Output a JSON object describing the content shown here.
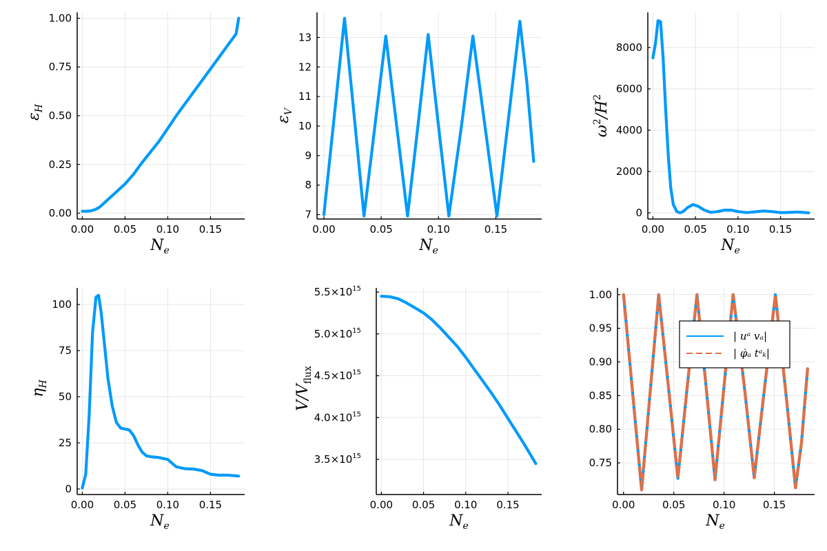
{
  "colors": {
    "series1": "#009AFA",
    "series2": "#E26F46",
    "grid": "#E6E6E6",
    "axis": "#000000"
  },
  "chart_data": [
    {
      "id": "epsH",
      "type": "line",
      "xlabel": "N_e",
      "ylabel": "ε_H",
      "xlim": [
        -0.006,
        0.19
      ],
      "ylim": [
        -0.03,
        1.03
      ],
      "xticks": [
        "0.00",
        "0.05",
        "0.10",
        "0.15"
      ],
      "xtick_values": [
        0,
        0.05,
        0.1,
        0.15
      ],
      "yticks": [
        "0.00",
        "0.25",
        "0.50",
        "0.75",
        "1.00"
      ],
      "ytick_values": [
        0,
        0.25,
        0.5,
        0.75,
        1.0
      ],
      "grid": true,
      "series": [
        {
          "color": "#009AFA",
          "style": "solid",
          "x": [
            0,
            0.005,
            0.01,
            0.015,
            0.02,
            0.025,
            0.03,
            0.04,
            0.05,
            0.06,
            0.07,
            0.08,
            0.09,
            0.1,
            0.11,
            0.12,
            0.13,
            0.14,
            0.15,
            0.16,
            0.17,
            0.18,
            0.183
          ],
          "y": [
            0.01,
            0.01,
            0.012,
            0.018,
            0.03,
            0.05,
            0.07,
            0.11,
            0.15,
            0.2,
            0.26,
            0.315,
            0.37,
            0.435,
            0.5,
            0.56,
            0.62,
            0.68,
            0.74,
            0.8,
            0.86,
            0.92,
            1.0
          ]
        }
      ]
    },
    {
      "id": "epsV",
      "type": "line",
      "xlabel": "N_e",
      "ylabel": "ε_V",
      "xlim": [
        -0.006,
        0.19
      ],
      "ylim": [
        6.85,
        13.85
      ],
      "xticks": [
        "0.00",
        "0.05",
        "0.10",
        "0.15"
      ],
      "xtick_values": [
        0,
        0.05,
        0.1,
        0.15
      ],
      "yticks": [
        "7",
        "8",
        "9",
        "10",
        "11",
        "12",
        "13"
      ],
      "ytick_values": [
        7,
        8,
        9,
        10,
        11,
        12,
        13
      ],
      "grid": true,
      "series": [
        {
          "color": "#009AFA",
          "style": "solid",
          "x": [
            0,
            0.009,
            0.018,
            0.0265,
            0.035,
            0.0445,
            0.054,
            0.0635,
            0.073,
            0.082,
            0.091,
            0.1,
            0.109,
            0.12,
            0.13,
            0.1405,
            0.151,
            0.161,
            0.171,
            0.177,
            0.183
          ],
          "y": [
            7.0,
            10.3,
            13.65,
            10.3,
            6.95,
            10.0,
            13.05,
            10.0,
            6.95,
            10.0,
            13.1,
            10.0,
            6.95,
            10.0,
            13.05,
            10.0,
            6.95,
            10.25,
            13.55,
            11.5,
            8.8
          ]
        }
      ]
    },
    {
      "id": "omega",
      "type": "line",
      "xlabel": "N_e",
      "ylabel": "ω²/H²",
      "xlim": [
        -0.006,
        0.19
      ],
      "ylim": [
        -300,
        9700
      ],
      "xticks": [
        "0.00",
        "0.05",
        "0.10",
        "0.15"
      ],
      "xtick_values": [
        0,
        0.05,
        0.1,
        0.15
      ],
      "yticks": [
        "0",
        "2000",
        "4000",
        "6000",
        "8000"
      ],
      "ytick_values": [
        0,
        2000,
        4000,
        6000,
        8000
      ],
      "grid": true,
      "series": [
        {
          "color": "#009AFA",
          "style": "solid",
          "x": [
            0,
            0.003,
            0.006,
            0.009,
            0.012,
            0.015,
            0.018,
            0.021,
            0.024,
            0.028,
            0.032,
            0.036,
            0.041,
            0.047,
            0.053,
            0.06,
            0.068,
            0.076,
            0.084,
            0.092,
            0.1,
            0.11,
            0.12,
            0.13,
            0.14,
            0.15,
            0.16,
            0.17,
            0.183
          ],
          "y": [
            7500,
            8200,
            9300,
            9250,
            7500,
            5000,
            2800,
            1200,
            400,
            60,
            0,
            80,
            260,
            400,
            320,
            140,
            20,
            60,
            130,
            130,
            60,
            10,
            50,
            90,
            60,
            10,
            20,
            40,
            0
          ]
        }
      ]
    },
    {
      "id": "etaH",
      "type": "line",
      "xlabel": "N_e",
      "ylabel": "η_H",
      "xlim": [
        -0.006,
        0.19
      ],
      "ylim": [
        -3,
        109
      ],
      "xticks": [
        "0.00",
        "0.05",
        "0.10",
        "0.15"
      ],
      "xtick_values": [
        0,
        0.05,
        0.1,
        0.15
      ],
      "yticks": [
        "0",
        "25",
        "50",
        "75",
        "100"
      ],
      "ytick_values": [
        0,
        25,
        50,
        75,
        100
      ],
      "grid": true,
      "series": [
        {
          "color": "#009AFA",
          "style": "solid",
          "x": [
            0,
            0.004,
            0.008,
            0.012,
            0.016,
            0.019,
            0.022,
            0.026,
            0.03,
            0.035,
            0.04,
            0.045,
            0.05,
            0.055,
            0.06,
            0.065,
            0.07,
            0.075,
            0.08,
            0.09,
            0.1,
            0.105,
            0.11,
            0.12,
            0.13,
            0.14,
            0.15,
            0.16,
            0.17,
            0.183
          ],
          "y": [
            0.5,
            8,
            40,
            85,
            104,
            105,
            96,
            78,
            60,
            45,
            36,
            33,
            32.5,
            32,
            29,
            24,
            20,
            18,
            17.5,
            17,
            16,
            14,
            12,
            11,
            10.8,
            10,
            8,
            7.5,
            7.5,
            7
          ]
        }
      ]
    },
    {
      "id": "VVflux",
      "type": "line",
      "xlabel": "N_e",
      "ylabel": "V/V_flux",
      "xlim": [
        -0.006,
        0.19
      ],
      "ylim": [
        3080000000000000.0,
        5550000000000000.0
      ],
      "xticks": [
        "0.00",
        "0.05",
        "0.10",
        "0.15"
      ],
      "xtick_values": [
        0,
        0.05,
        0.1,
        0.15
      ],
      "yticks": [
        "3.5×10",
        "4.0×10",
        "4.5×10",
        "5.0×10",
        "5.5×10"
      ],
      "ytick_exponent": "15",
      "ytick_values": [
        3500000000000000.0,
        4000000000000000.0,
        4500000000000000.0,
        5000000000000000.0,
        5500000000000000.0
      ],
      "grid": true,
      "series": [
        {
          "color": "#009AFA",
          "style": "solid",
          "x": [
            0,
            0.01,
            0.02,
            0.03,
            0.04,
            0.05,
            0.06,
            0.07,
            0.08,
            0.09,
            0.1,
            0.11,
            0.12,
            0.13,
            0.14,
            0.15,
            0.16,
            0.17,
            0.183
          ],
          "y": [
            5450000000000000.0,
            5445000000000000.0,
            5420000000000000.0,
            5370000000000000.0,
            5310000000000000.0,
            5250000000000000.0,
            5170000000000000.0,
            5070000000000000.0,
            4960000000000000.0,
            4850000000000000.0,
            4720000000000000.0,
            4580000000000000.0,
            4440000000000000.0,
            4300000000000000.0,
            4150000000000000.0,
            3990000000000000.0,
            3830000000000000.0,
            3670000000000000.0,
            3450000000000000.0
          ]
        }
      ]
    },
    {
      "id": "overlap",
      "type": "line",
      "xlabel": "N_e",
      "ylabel": "",
      "xlim": [
        -0.006,
        0.19
      ],
      "ylim": [
        0.703,
        1.01
      ],
      "xticks": [
        "0.00",
        "0.05",
        "0.10",
        "0.15"
      ],
      "xtick_values": [
        0,
        0.05,
        0.1,
        0.15
      ],
      "yticks": [
        "0.75",
        "0.80",
        "0.85",
        "0.90",
        "0.95",
        "1.00"
      ],
      "ytick_values": [
        0.75,
        0.8,
        0.85,
        0.9,
        0.95,
        1.0
      ],
      "grid": true,
      "legend": {
        "placement": "top-right",
        "entries": [
          "| uᵃ vₐ|",
          "| φ̇ₐ tᵃₖ|"
        ]
      },
      "series": [
        {
          "color": "#009AFA",
          "style": "solid",
          "x": [
            0,
            0.009,
            0.018,
            0.0265,
            0.035,
            0.0445,
            0.054,
            0.0635,
            0.073,
            0.082,
            0.091,
            0.1,
            0.109,
            0.12,
            0.13,
            0.1405,
            0.151,
            0.161,
            0.171,
            0.177,
            0.183
          ],
          "y": [
            1.0,
            0.855,
            0.71,
            0.855,
            1.0,
            0.865,
            0.727,
            0.865,
            1.0,
            0.865,
            0.725,
            0.865,
            1.0,
            0.865,
            0.728,
            0.865,
            1.0,
            0.86,
            0.713,
            0.78,
            0.89
          ]
        },
        {
          "color": "#E26F46",
          "style": "dashed",
          "x": [
            0,
            0.009,
            0.018,
            0.0265,
            0.035,
            0.0445,
            0.054,
            0.0635,
            0.073,
            0.082,
            0.091,
            0.1,
            0.109,
            0.12,
            0.13,
            0.1405,
            0.151,
            0.161,
            0.171,
            0.177,
            0.183
          ],
          "y": [
            1.0,
            0.855,
            0.71,
            0.855,
            1.0,
            0.865,
            0.727,
            0.865,
            1.0,
            0.865,
            0.725,
            0.865,
            1.0,
            0.865,
            0.728,
            0.865,
            1.0,
            0.86,
            0.713,
            0.78,
            0.89
          ]
        }
      ]
    }
  ]
}
